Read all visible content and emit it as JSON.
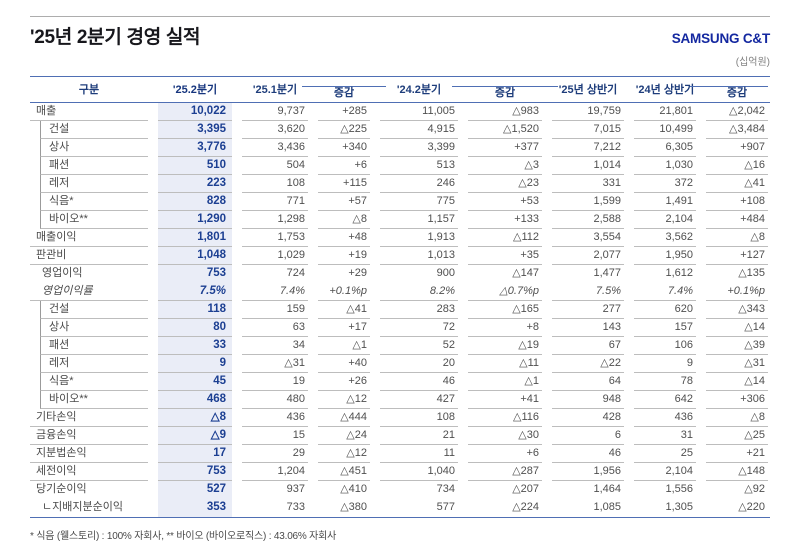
{
  "page": {
    "title": "'25년 2분기 경영 실적",
    "logo": "SAMSUNG C&T",
    "unit_label": "(십억원)",
    "footnote": "* 식음 (웰스토리) : 100% 자회사, ** 바이오 (바이오로직스) : 43.06% 자회사"
  },
  "colors": {
    "accent_blue": "#1428a0",
    "table_line_blue": "#4f6fb4",
    "header_text": "#1e3d7b",
    "highlight_bg": "#eaedf7",
    "highlight_text": "#1c3f92",
    "body_text": "#4f4f4f",
    "row_separator": "#bdbdbd"
  },
  "table": {
    "headers": [
      "구분",
      "'25.2분기",
      "'25.1분기",
      "증감",
      "'24.2분기",
      "증감",
      "'25년 상반기",
      "'24년 상반기",
      "증감"
    ],
    "highlight_column_index": 1,
    "chg_header_indices": [
      3,
      5,
      8
    ],
    "rows": [
      {
        "label": "매출",
        "style": "top",
        "noborder": false,
        "italic": false,
        "values": [
          "10,022",
          "9,737",
          "+285",
          "11,005",
          "△983",
          "19,759",
          "21,801",
          "△2,042"
        ]
      },
      {
        "label": "건설",
        "style": "sub",
        "noborder": false,
        "italic": false,
        "values": [
          "3,395",
          "3,620",
          "△225",
          "4,915",
          "△1,520",
          "7,015",
          "10,499",
          "△3,484"
        ]
      },
      {
        "label": "상사",
        "style": "sub",
        "noborder": false,
        "italic": false,
        "values": [
          "3,776",
          "3,436",
          "+340",
          "3,399",
          "+377",
          "7,212",
          "6,305",
          "+907"
        ]
      },
      {
        "label": "패션",
        "style": "sub",
        "noborder": false,
        "italic": false,
        "values": [
          "510",
          "504",
          "+6",
          "513",
          "△3",
          "1,014",
          "1,030",
          "△16"
        ]
      },
      {
        "label": "레저",
        "style": "sub",
        "noborder": false,
        "italic": false,
        "values": [
          "223",
          "108",
          "+115",
          "246",
          "△23",
          "331",
          "372",
          "△41"
        ]
      },
      {
        "label": "식음*",
        "style": "sub",
        "noborder": false,
        "italic": false,
        "values": [
          "828",
          "771",
          "+57",
          "775",
          "+53",
          "1,599",
          "1,491",
          "+108"
        ]
      },
      {
        "label": "바이오**",
        "style": "sub",
        "noborder": false,
        "italic": false,
        "values": [
          "1,290",
          "1,298",
          "△8",
          "1,157",
          "+133",
          "2,588",
          "2,104",
          "+484"
        ]
      },
      {
        "label": "매출이익",
        "style": "top",
        "noborder": false,
        "italic": false,
        "values": [
          "1,801",
          "1,753",
          "+48",
          "1,913",
          "△112",
          "3,554",
          "3,562",
          "△8"
        ]
      },
      {
        "label": "판관비",
        "style": "top",
        "noborder": false,
        "italic": false,
        "values": [
          "1,048",
          "1,029",
          "+19",
          "1,013",
          "+35",
          "2,077",
          "1,950",
          "+127"
        ]
      },
      {
        "label": "영업이익",
        "style": "op",
        "noborder": true,
        "italic": false,
        "values": [
          "753",
          "724",
          "+29",
          "900",
          "△147",
          "1,477",
          "1,612",
          "△135"
        ]
      },
      {
        "label": "영업이익률",
        "style": "oprate",
        "noborder": false,
        "italic": true,
        "values": [
          "7.5%",
          "7.4%",
          "+0.1%p",
          "8.2%",
          "△0.7%p",
          "7.5%",
          "7.4%",
          "+0.1%p"
        ]
      },
      {
        "label": "건설",
        "style": "sub",
        "noborder": false,
        "italic": false,
        "values": [
          "118",
          "159",
          "△41",
          "283",
          "△165",
          "277",
          "620",
          "△343"
        ]
      },
      {
        "label": "상사",
        "style": "sub",
        "noborder": false,
        "italic": false,
        "values": [
          "80",
          "63",
          "+17",
          "72",
          "+8",
          "143",
          "157",
          "△14"
        ]
      },
      {
        "label": "패션",
        "style": "sub",
        "noborder": false,
        "italic": false,
        "values": [
          "33",
          "34",
          "△1",
          "52",
          "△19",
          "67",
          "106",
          "△39"
        ]
      },
      {
        "label": "레저",
        "style": "sub",
        "noborder": false,
        "italic": false,
        "values": [
          "9",
          "△31",
          "+40",
          "20",
          "△11",
          "△22",
          "9",
          "△31"
        ]
      },
      {
        "label": "식음*",
        "style": "sub",
        "noborder": false,
        "italic": false,
        "values": [
          "45",
          "19",
          "+26",
          "46",
          "△1",
          "64",
          "78",
          "△14"
        ]
      },
      {
        "label": "바이오**",
        "style": "sub",
        "noborder": false,
        "italic": false,
        "values": [
          "468",
          "480",
          "△12",
          "427",
          "+41",
          "948",
          "642",
          "+306"
        ]
      },
      {
        "label": "기타손익",
        "style": "top",
        "noborder": false,
        "italic": false,
        "values": [
          "△8",
          "436",
          "△444",
          "108",
          "△116",
          "428",
          "436",
          "△8"
        ]
      },
      {
        "label": "금융손익",
        "style": "top",
        "noborder": false,
        "italic": false,
        "values": [
          "△9",
          "15",
          "△24",
          "21",
          "△30",
          "6",
          "31",
          "△25"
        ]
      },
      {
        "label": "지분법손익",
        "style": "top",
        "noborder": false,
        "italic": false,
        "values": [
          "17",
          "29",
          "△12",
          "11",
          "+6",
          "46",
          "25",
          "+21"
        ]
      },
      {
        "label": "세전이익",
        "style": "top",
        "noborder": false,
        "italic": false,
        "values": [
          "753",
          "1,204",
          "△451",
          "1,040",
          "△287",
          "1,956",
          "2,104",
          "△148"
        ]
      },
      {
        "label": "당기순이익",
        "style": "top",
        "noborder": true,
        "italic": false,
        "values": [
          "527",
          "937",
          "△410",
          "734",
          "△207",
          "1,464",
          "1,556",
          "△92"
        ]
      },
      {
        "label": "ㄴ지배지분순이익",
        "style": "netsub",
        "noborder": false,
        "italic": false,
        "values": [
          "353",
          "733",
          "△380",
          "577",
          "△224",
          "1,085",
          "1,305",
          "△220"
        ]
      }
    ]
  }
}
